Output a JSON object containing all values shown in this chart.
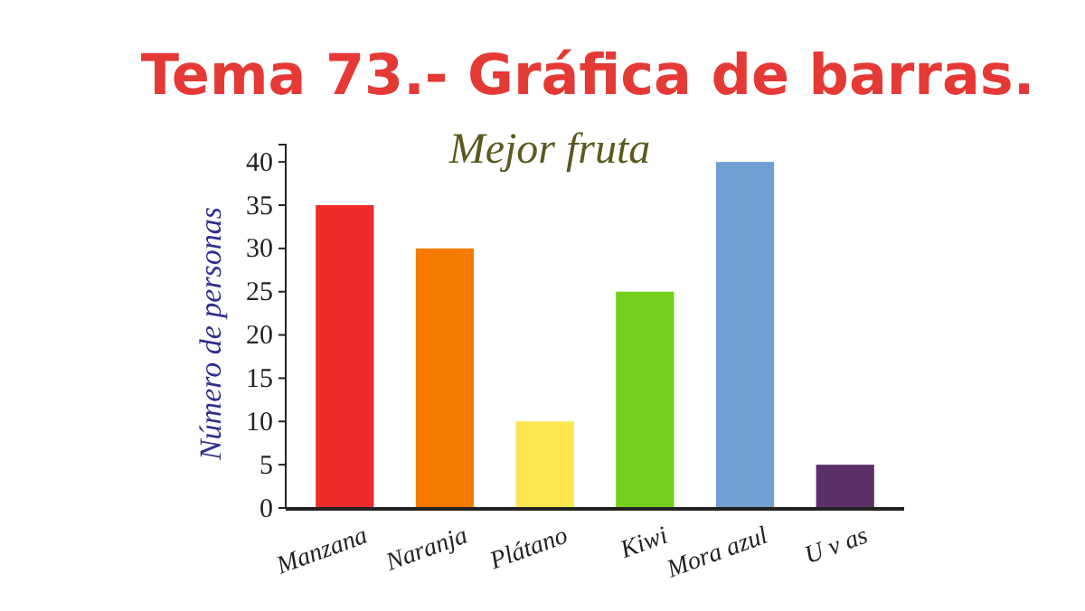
{
  "chart_data": {
    "type": "bar",
    "title": "Tema 73.- Gráfica de barras.",
    "subtitle": "Mejor fruta",
    "ylabel": "Número de personas",
    "categories": [
      "Manzana",
      "Naranja",
      "Plátano",
      "Kiwi",
      "Mora azul",
      "U v as"
    ],
    "values": [
      35,
      30,
      10,
      25,
      40,
      5
    ],
    "colors": [
      "#ee2a2a",
      "#f57a00",
      "#fbe64f",
      "#74cf1a",
      "#6f9fd3",
      "#5a3068"
    ],
    "ylim": [
      0,
      42
    ],
    "yticks": [
      0,
      5,
      10,
      15,
      20,
      25,
      30,
      35,
      40
    ],
    "grid": false
  }
}
